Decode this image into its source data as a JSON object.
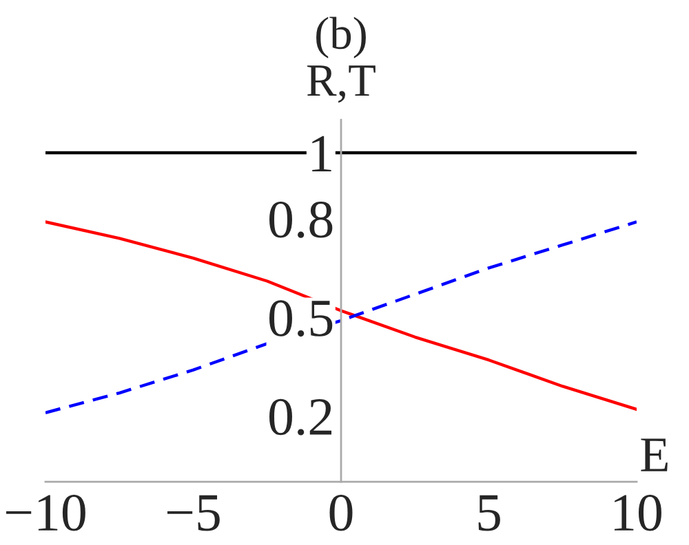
{
  "chart_data": {
    "type": "line",
    "title": "(b)",
    "xlabel": "E",
    "ylabel": "R,T",
    "x": [
      -10,
      -7.5,
      -5,
      -2.5,
      0,
      2.5,
      5,
      7.5,
      10
    ],
    "series": [
      {
        "color": "#000000",
        "line_style": "solid",
        "values": [
          1,
          1,
          1,
          1,
          1,
          1,
          1,
          1,
          1
        ]
      },
      {
        "color": "#ff0000",
        "line_style": "solid",
        "values": [
          0.79,
          0.74,
          0.68,
          0.61,
          0.52,
          0.44,
          0.37,
          0.29,
          0.22
        ]
      },
      {
        "color": "#0000ff",
        "line_style": "dashed",
        "values": [
          0.21,
          0.27,
          0.34,
          0.42,
          0.49,
          0.57,
          0.65,
          0.72,
          0.79
        ]
      }
    ],
    "xlim": [
      -10,
      10
    ],
    "ylim": [
      0,
      1.1
    ],
    "xticks": [
      -10,
      -5,
      0,
      5,
      10
    ],
    "yticks": [
      0.2,
      0.5,
      0.8,
      1
    ],
    "grid": false,
    "legend": false
  }
}
